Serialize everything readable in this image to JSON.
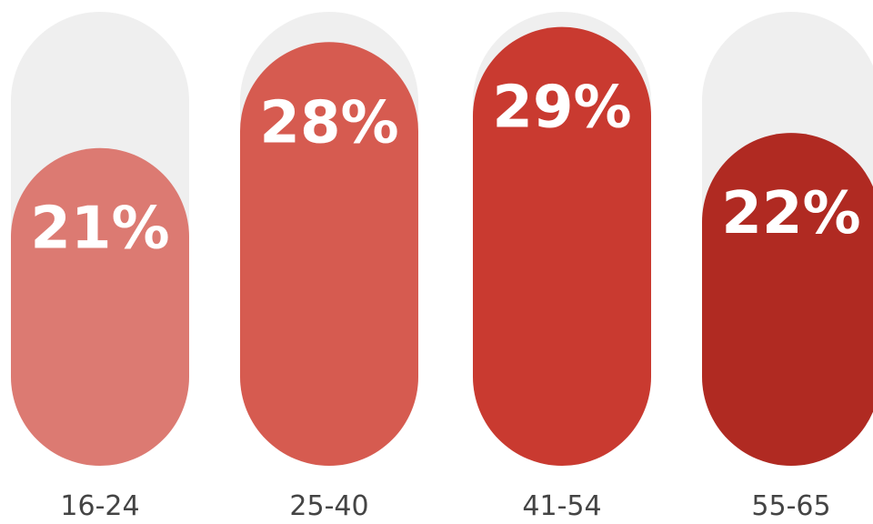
{
  "chart_data": {
    "type": "bar",
    "categories": [
      "16-24",
      "25-40",
      "41-54",
      "55-65"
    ],
    "values": [
      21,
      28,
      29,
      22
    ],
    "value_labels": [
      "21%",
      "28%",
      "29%",
      "22%"
    ],
    "ylim": [
      0,
      30
    ],
    "grid": false,
    "legend": "none",
    "colors": [
      "#dc7a72",
      "#d65b50",
      "#c93a30",
      "#b02a22"
    ],
    "track_color": "#efefef",
    "background": "#ffffff"
  }
}
